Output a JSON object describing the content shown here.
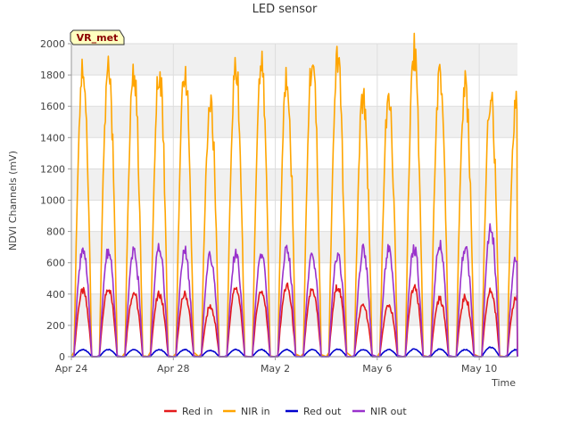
{
  "chart_data": {
    "type": "line",
    "title": "LED sensor",
    "xlabel": "Time",
    "ylabel": "NDVI Channels (mV)",
    "site_label": "VR_met",
    "ylim": [
      0,
      2000
    ],
    "yticks": [
      0,
      200,
      400,
      600,
      800,
      1000,
      1200,
      1400,
      1600,
      1800,
      2000
    ],
    "xlim": [
      "2025-04-24",
      "2025-05-11T12:00"
    ],
    "xticks": [
      {
        "date": "2025-04-24",
        "label": "Apr 24"
      },
      {
        "date": "2025-04-28",
        "label": "Apr 28"
      },
      {
        "date": "2025-05-02",
        "label": "May 2"
      },
      {
        "date": "2025-05-06",
        "label": "May 6"
      },
      {
        "date": "2025-05-10",
        "label": "May 10"
      }
    ],
    "grid": true,
    "background_bands": true,
    "legend_position": "bottom",
    "days": [
      "2025-04-24",
      "2025-04-25",
      "2025-04-26",
      "2025-04-27",
      "2025-04-28",
      "2025-04-29",
      "2025-04-30",
      "2025-05-01",
      "2025-05-02",
      "2025-05-03",
      "2025-05-04",
      "2025-05-05",
      "2025-05-06",
      "2025-05-07",
      "2025-05-08",
      "2025-05-09",
      "2025-05-10",
      "2025-05-11"
    ],
    "series": [
      {
        "name": "Red in",
        "color": "#e41a1c",
        "daily_peak": [
          420,
          440,
          410,
          400,
          400,
          320,
          440,
          420,
          450,
          430,
          450,
          330,
          330,
          440,
          370,
          380,
          420,
          380
        ]
      },
      {
        "name": "NIR in",
        "color": "#ffa500",
        "daily_peak": [
          1850,
          1860,
          1810,
          1830,
          1840,
          1610,
          1850,
          1860,
          1780,
          1900,
          1900,
          1660,
          1640,
          1960,
          1820,
          1730,
          1660,
          1650
        ]
      },
      {
        "name": "Red out",
        "color": "#0000cd",
        "daily_peak": [
          45,
          45,
          45,
          45,
          45,
          40,
          45,
          45,
          45,
          45,
          48,
          45,
          45,
          48,
          48,
          45,
          60,
          45
        ]
      },
      {
        "name": "NIR out",
        "color": "#9932cc",
        "daily_peak": [
          690,
          670,
          670,
          690,
          675,
          640,
          650,
          650,
          700,
          640,
          655,
          680,
          690,
          690,
          720,
          690,
          820,
          630
        ]
      }
    ]
  }
}
